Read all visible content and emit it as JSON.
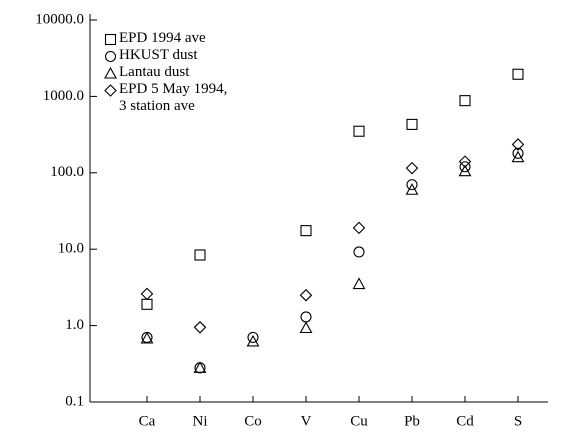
{
  "chart_data": {
    "type": "scatter",
    "categories": [
      "Ca",
      "Ni",
      "Co",
      "V",
      "Cu",
      "Pb",
      "Cd",
      "S"
    ],
    "log_scale": true,
    "ylim": [
      0.1,
      10000
    ],
    "yticks": [
      {
        "value": 0.1,
        "label": "0.1"
      },
      {
        "value": 1,
        "label": "1.0"
      },
      {
        "value": 10,
        "label": "10.0"
      },
      {
        "value": 100,
        "label": "100.0"
      },
      {
        "value": 1000,
        "label": "1000.0"
      },
      {
        "value": 10000,
        "label": "10000.0"
      }
    ],
    "legend": "top-left",
    "series": [
      {
        "name": "EPD 1994 ave",
        "marker": "square",
        "color": "#000000",
        "values": [
          1.9,
          8.4,
          null,
          17.5,
          350,
          430,
          880,
          1950
        ]
      },
      {
        "name": "HKUST dust",
        "marker": "circle",
        "color": "#000000",
        "values": [
          0.7,
          0.28,
          0.7,
          1.3,
          9.2,
          70,
          120,
          180
        ]
      },
      {
        "name": "Lantau dust",
        "marker": "triangle",
        "color": "#000000",
        "values": [
          0.68,
          0.28,
          0.62,
          0.93,
          3.5,
          60,
          105,
          160
        ]
      },
      {
        "name": "EPD 5 May 1994,\n3 station ave",
        "marker": "diamond",
        "color": "#000000",
        "values": [
          2.6,
          0.95,
          null,
          2.5,
          19,
          115,
          140,
          235
        ]
      }
    ]
  }
}
